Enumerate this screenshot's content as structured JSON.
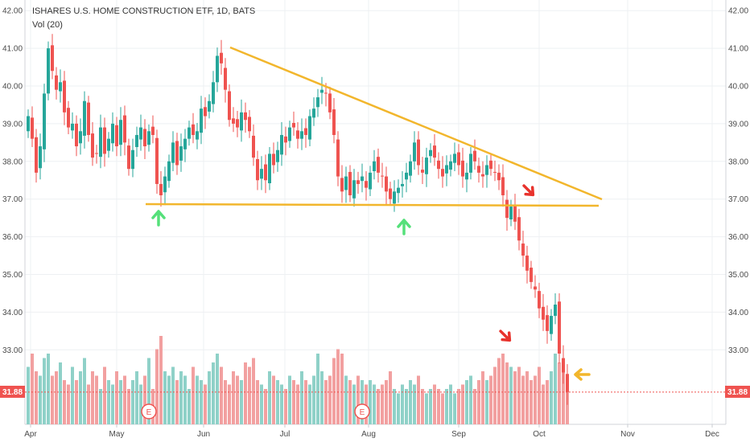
{
  "header": {
    "title": "ISHARES U.S. HOME CONSTRUCTION ETF, 1D, BATS",
    "volume_label": "Vol (20)"
  },
  "colors": {
    "up": "#26a69a",
    "down": "#ef5350",
    "vol_up": "#8fd1c8",
    "vol_down": "#f2a0a0",
    "trendline": "#f2b62c",
    "last_price": "#ef5350",
    "arrow_green": "#55e07a",
    "arrow_red": "#e8322c",
    "arrow_orange": "#f2b62c"
  },
  "earnings_markers": [
    {
      "label": "E",
      "date_index": 30
    },
    {
      "label": "E",
      "date_index": 83
    }
  ],
  "last_price": {
    "label": "31.88",
    "value": 31.88
  },
  "chart_data": {
    "type": "candlestick",
    "title": "ISHARES U.S. HOME CONSTRUCTION ETF, 1D, BATS",
    "subtitle": "Vol (20)",
    "x_tick_labels": [
      "Apr",
      "May",
      "Jun",
      "Jul",
      "Aug",
      "Sep",
      "Oct",
      "Nov",
      "Dec"
    ],
    "y_tick_labels": [
      "42.00",
      "41.00",
      "40.00",
      "39.00",
      "38.00",
      "37.00",
      "36.00",
      "35.00",
      "34.00",
      "33.00"
    ],
    "ylim": [
      31.1,
      42.2
    ],
    "close": [
      39.2,
      38.6,
      37.7,
      38.4,
      39.8,
      41.0,
      40.4,
      39.9,
      40.1,
      39.3,
      38.9,
      39.0,
      38.4,
      38.8,
      39.6,
      38.7,
      38.1,
      38.2,
      38.9,
      38.2,
      38.6,
      39.0,
      38.4,
      39.1,
      38.5,
      37.8,
      38.3,
      38.7,
      38.9,
      38.4,
      38.8,
      38.7,
      37.4,
      37.1,
      37.6,
      38.0,
      38.5,
      37.9,
      38.4,
      38.6,
      38.9,
      38.7,
      38.8,
      39.4,
      39.2,
      39.6,
      40.1,
      40.8,
      40.6,
      39.9,
      39.1,
      39.0,
      38.9,
      39.3,
      39.1,
      38.8,
      38.1,
      37.5,
      37.8,
      37.5,
      38.2,
      37.9,
      38.3,
      38.7,
      38.5,
      38.9,
      38.9,
      38.6,
      38.8,
      38.7,
      39.2,
      39.4,
      39.7,
      39.9,
      39.8,
      39.3,
      38.7,
      37.6,
      37.2,
      37.6,
      37.1,
      37.5,
      37.4,
      37.6,
      37.3,
      37.7,
      38.0,
      37.7,
      37.6,
      37.2,
      37.0,
      37.2,
      37.3,
      37.4,
      37.7,
      38.0,
      38.5,
      37.9,
      37.7,
      38.1,
      38.3,
      38.1,
      37.8,
      37.6,
      37.9,
      38.0,
      38.2,
      37.9,
      37.6,
      37.7,
      38.2,
      38.0,
      37.7,
      37.6,
      37.9,
      37.8,
      37.7,
      37.5,
      37.1,
      36.5,
      36.8,
      36.4,
      35.9,
      35.5,
      35.1,
      34.8,
      34.6,
      34.1,
      33.8,
      33.5,
      33.9,
      34.2,
      32.9,
      32.4,
      31.88
    ],
    "volume": [
      6.5,
      8.0,
      6.0,
      5.5,
      7.5,
      8.0,
      5.5,
      6.0,
      7.0,
      5.0,
      4.5,
      6.5,
      5.0,
      6.0,
      7.5,
      4.5,
      6.0,
      5.5,
      4.0,
      6.5,
      5.0,
      4.5,
      6.0,
      5.0,
      5.5,
      4.0,
      5.0,
      6.0,
      4.5,
      5.5,
      7.5,
      4.0,
      8.5,
      10.0,
      6.0,
      5.5,
      6.5,
      5.0,
      6.0,
      5.5,
      4.0,
      6.5,
      5.5,
      5.0,
      4.5,
      6.0,
      7.0,
      8.0,
      6.5,
      5.0,
      4.5,
      6.0,
      5.5,
      5.0,
      7.0,
      6.5,
      7.5,
      5.0,
      4.5,
      4.0,
      6.0,
      5.5,
      5.0,
      4.5,
      4.0,
      5.5,
      5.0,
      4.5,
      6.0,
      5.0,
      4.5,
      5.5,
      8.0,
      6.0,
      5.0,
      5.5,
      7.5,
      8.5,
      8.0,
      5.5,
      5.0,
      4.5,
      5.5,
      5.0,
      4.5,
      5.0,
      4.5,
      4.0,
      4.5,
      5.0,
      6.0,
      4.0,
      3.5,
      4.5,
      4.0,
      5.0,
      4.5,
      5.5,
      4.0,
      3.5,
      4.0,
      4.5,
      4.0,
      3.5,
      4.0,
      4.5,
      3.5,
      4.0,
      4.5,
      5.0,
      5.5,
      4.0,
      5.0,
      6.0,
      5.0,
      5.5,
      6.5,
      7.5,
      8.0,
      7.0,
      6.5,
      6.0,
      6.5,
      5.5,
      6.0,
      5.0,
      5.5,
      6.5,
      4.5,
      5.0,
      6.0,
      8.0,
      7.0,
      6.5,
      4.5
    ],
    "annotations": [
      "descending triangle: falling resistance and flat support near 36.85",
      "support tests (green arrows) in mid-May and mid-August",
      "breakdown below support (red arrows) in late September"
    ]
  }
}
